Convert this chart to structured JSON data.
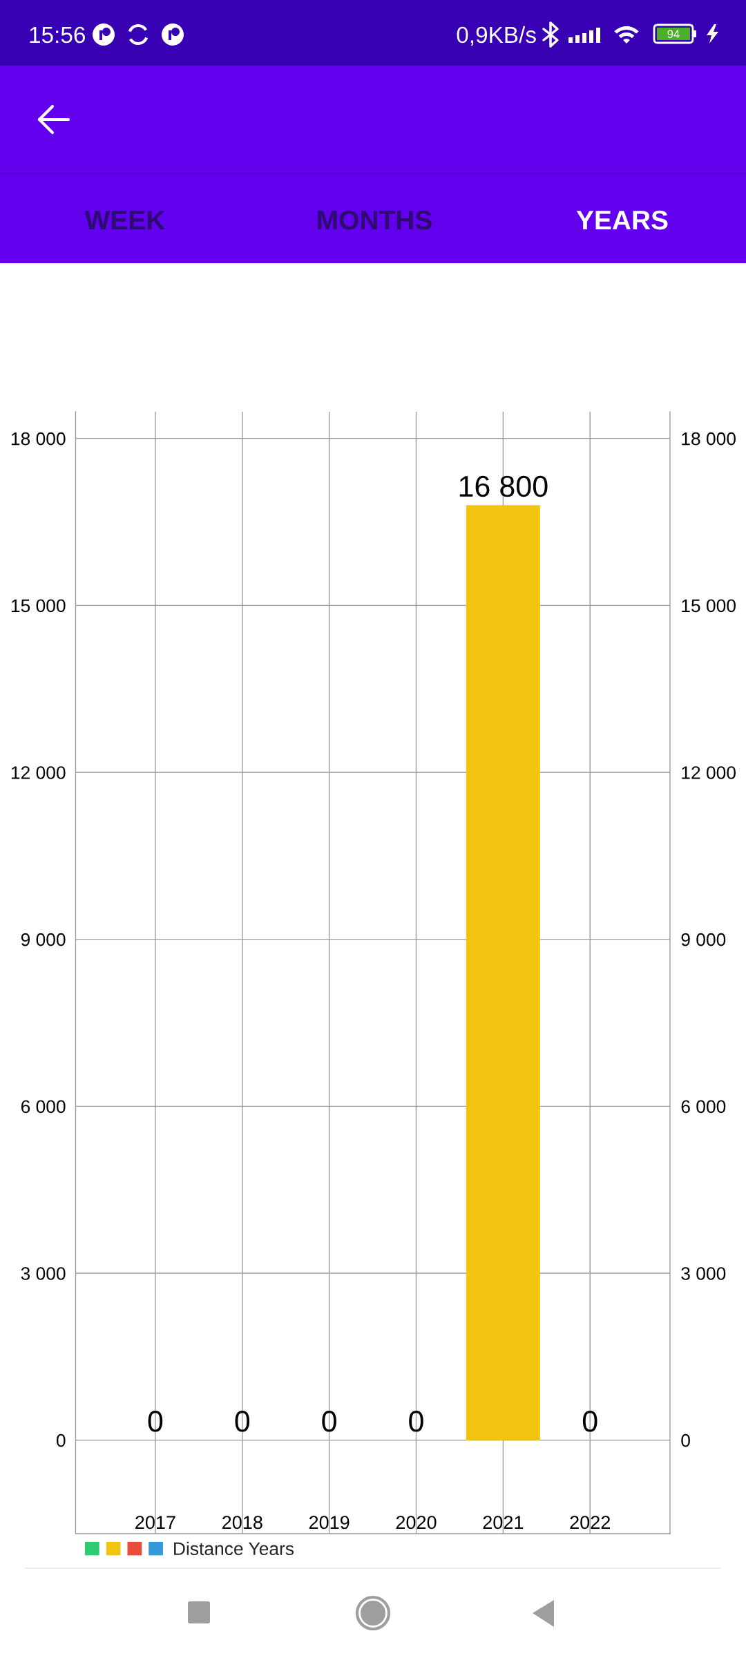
{
  "chart_data": {
    "type": "bar",
    "categories": [
      "2017",
      "2018",
      "2019",
      "2020",
      "2021",
      "2022"
    ],
    "series": [
      {
        "name": "Distance Years",
        "colors": [
          "#2ecc71",
          "#f1c40f",
          "#e74c3c",
          "#3498db",
          "#f1c40f",
          "#2ecc71"
        ],
        "values": [
          0,
          0,
          0,
          0,
          16800,
          0
        ],
        "value_labels": [
          "0",
          "0",
          "0",
          "0",
          "16 800",
          "0"
        ]
      }
    ],
    "ylim": [
      -1680,
      18480
    ],
    "yticks": [
      0,
      {
        "value": 3000,
        "label": "3 000"
      },
      {
        "value": 6000,
        "label": "6 000"
      },
      {
        "value": 9000,
        "label": "9 000"
      },
      {
        "value": 12000,
        "label": "12 000"
      },
      {
        "value": 15000,
        "label": "15 000"
      },
      {
        "value": 18000,
        "label": "18 000"
      }
    ],
    "y2lim": [
      -1680,
      18480
    ],
    "y2ticks": [
      0,
      {
        "value": 3000,
        "label": "3 000"
      },
      {
        "value": 6000,
        "label": "6 000"
      },
      {
        "value": 9000,
        "label": "9 000"
      },
      {
        "value": 12000,
        "label": "12 000"
      },
      {
        "value": 15000,
        "label": "15 000"
      },
      {
        "value": 18000,
        "label": "18 000"
      }
    ],
    "grid": true,
    "legend": "bottom left",
    "annotations": [
      "15:56",
      "0,9KB/s",
      "94",
      "WEEK",
      "MONTHS",
      "YEARS"
    ]
  }
}
